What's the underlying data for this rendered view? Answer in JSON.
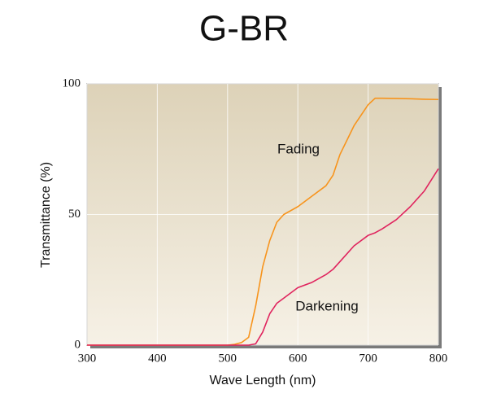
{
  "chart_data": {
    "type": "line",
    "title": "G-BR",
    "x_label": "Wave Length (nm)",
    "y_label": "Transmittance (%)",
    "x": [
      300,
      400,
      500,
      510,
      520,
      530,
      540,
      550,
      560,
      570,
      580,
      600,
      620,
      640,
      650,
      660,
      680,
      700,
      710,
      720,
      740,
      760,
      780,
      800
    ],
    "series": [
      {
        "name": "Fading",
        "color": "#f7941d",
        "values": [
          0,
          0,
          0,
          0.3,
          1,
          3,
          15,
          30,
          40,
          47,
          50,
          53,
          57,
          61,
          65,
          73,
          84,
          92,
          94.5,
          94.5,
          94.4,
          94.3,
          94.1,
          94
        ]
      },
      {
        "name": "Darkening",
        "color": "#e0245e",
        "values": [
          0,
          0,
          0,
          0,
          0,
          0,
          0.5,
          5,
          12,
          16,
          18,
          22,
          24,
          27,
          29,
          32,
          38,
          42,
          43,
          44.5,
          48,
          53,
          59,
          67.5
        ]
      }
    ],
    "xlim": [
      300,
      800
    ],
    "ylim": [
      0,
      100
    ],
    "xticks": [
      300,
      400,
      500,
      600,
      700,
      800
    ],
    "yticks": [
      0,
      50,
      100
    ],
    "grid": true
  }
}
